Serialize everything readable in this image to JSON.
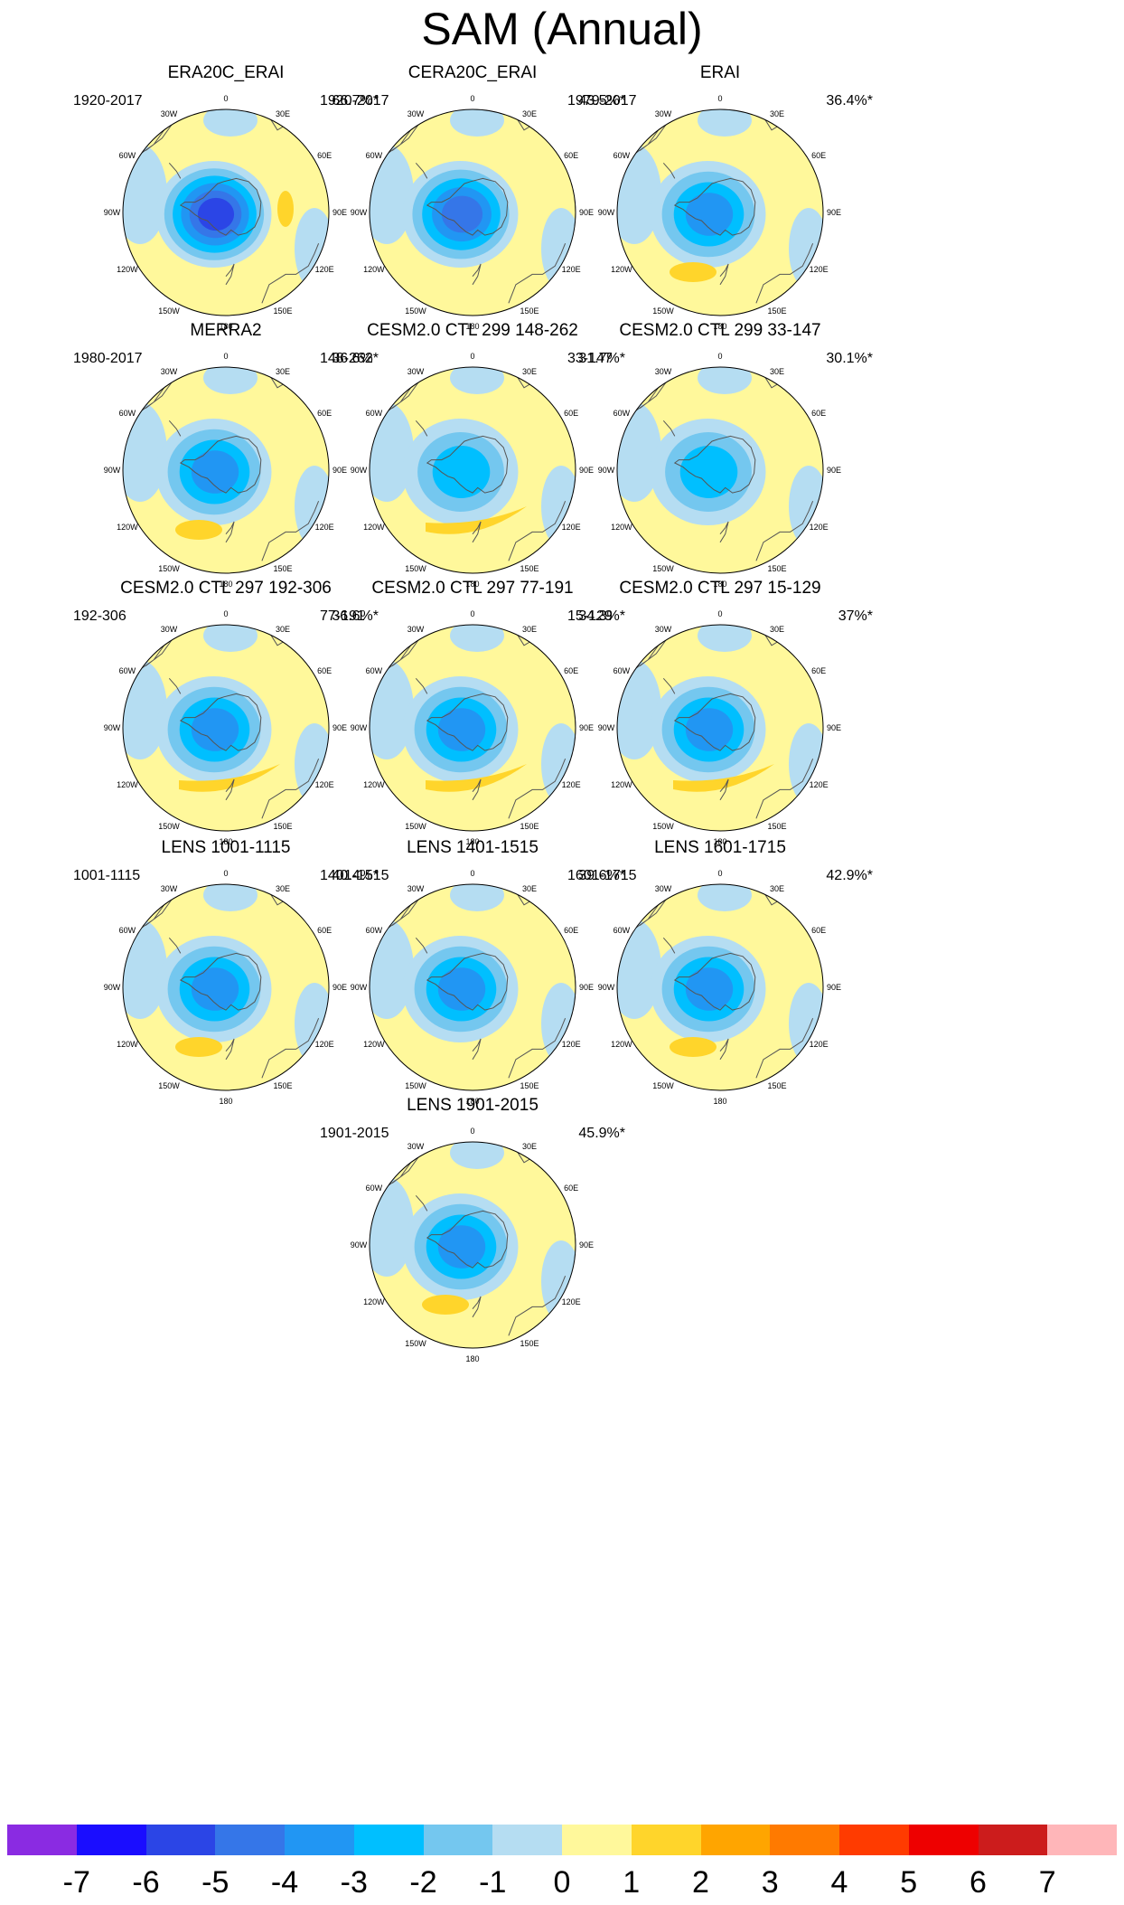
{
  "title": "SAM (Annual)",
  "panels": [
    {
      "title": "ERA20C_ERAI",
      "period": "1920-2017",
      "pct": "66.7%*",
      "strength": 5.6,
      "lobe": "east"
    },
    {
      "title": "CERA20C_ERAI",
      "period": "1920-2017",
      "pct": "43.5%*",
      "strength": 5.2,
      "lobe": "none"
    },
    {
      "title": "ERAI",
      "period": "1979-2017",
      "pct": "36.4%*",
      "strength": 4.0,
      "lobe": "south"
    },
    {
      "title": "MERRA2",
      "period": "1980-2017",
      "pct": "36.6%*",
      "strength": 3.6,
      "lobe": "south"
    },
    {
      "title": "CESM2.0 CTL 299 148-262",
      "period": "148-262",
      "pct": "31.7%*",
      "strength": 3.4,
      "lobe": "arc"
    },
    {
      "title": "CESM2.0 CTL 299 33-147",
      "period": "33-147",
      "pct": "30.1%*",
      "strength": 3.4,
      "lobe": "none"
    },
    {
      "title": "CESM2.0 CTL 297 192-306",
      "period": "192-306",
      "pct": "36.6%*",
      "strength": 3.5,
      "lobe": "arc"
    },
    {
      "title": "CESM2.0 CTL 297 77-191",
      "period": "77-191",
      "pct": "34.3%*",
      "strength": 3.5,
      "lobe": "arc"
    },
    {
      "title": "CESM2.0 CTL 297 15-129",
      "period": "15-129",
      "pct": "37%*",
      "strength": 3.5,
      "lobe": "arc"
    },
    {
      "title": "LENS 1001-1115",
      "period": "1001-1115",
      "pct": "40.4%*",
      "strength": 3.6,
      "lobe": "south"
    },
    {
      "title": "LENS 1401-1515",
      "period": "1401-1515",
      "pct": "39.6%*",
      "strength": 3.5,
      "lobe": "none"
    },
    {
      "title": "LENS 1601-1715",
      "period": "1601-1715",
      "pct": "42.9%*",
      "strength": 3.6,
      "lobe": "south"
    },
    {
      "title": "LENS 1901-2015",
      "period": "1901-2015",
      "pct": "45.9%*",
      "strength": 3.5,
      "lobe": "south"
    }
  ],
  "lon_labels": [
    "0",
    "30E",
    "60E",
    "90E",
    "120E",
    "150E",
    "180",
    "150W",
    "120W",
    "90W",
    "60W",
    "30W"
  ],
  "colorbar": {
    "colors": [
      "#8a2be2",
      "#1a0dff",
      "#2b45e6",
      "#3576e8",
      "#2196f3",
      "#00bfff",
      "#74c7ef",
      "#b5ddf2",
      "#fff89b",
      "#ffd52b",
      "#ffa500",
      "#ff7a00",
      "#ff3b00",
      "#ee0000",
      "#cc1c1c",
      "#ffb6b9"
    ],
    "labels": [
      "-7",
      "-6",
      "-5",
      "-4",
      "-3",
      "-2",
      "-1",
      "0",
      "1",
      "2",
      "3",
      "4",
      "5",
      "6",
      "7"
    ]
  }
}
